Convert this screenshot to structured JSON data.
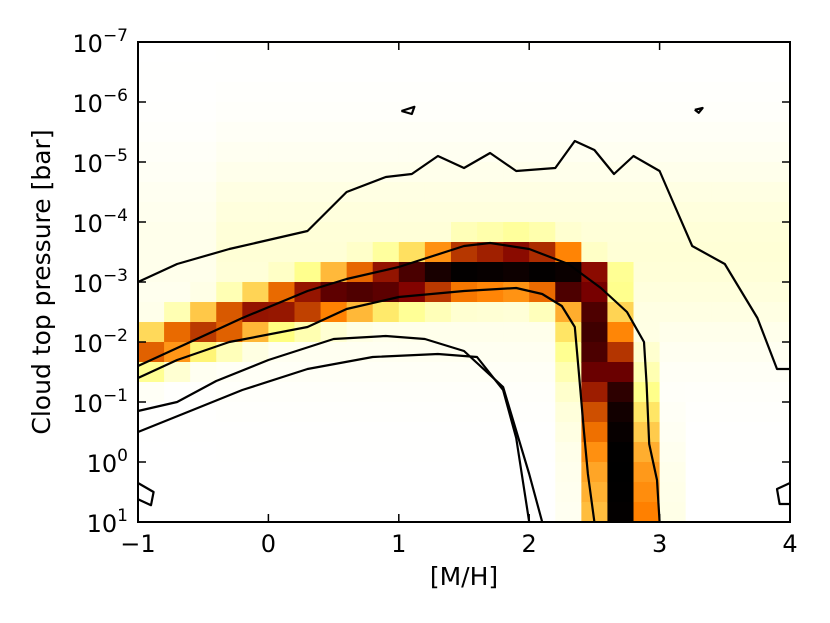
{
  "chart_data": {
    "type": "heatmap",
    "title": "",
    "xlabel": "[M/H]",
    "ylabel": "Cloud top pressure [bar]",
    "xlim": [
      -1,
      4
    ],
    "ylim_log10_pressure": [
      -7,
      1
    ],
    "y_axis_inverted": true,
    "colormap": "afmhot_r",
    "x_ticks": [
      {
        "value": -1,
        "label": "−1"
      },
      {
        "value": 0,
        "label": "0"
      },
      {
        "value": 1,
        "label": "1"
      },
      {
        "value": 2,
        "label": "2"
      },
      {
        "value": 3,
        "label": "3"
      },
      {
        "value": 4,
        "label": "4"
      }
    ],
    "y_ticks": [
      {
        "value": -7,
        "label": "10",
        "exp": "−7"
      },
      {
        "value": -6,
        "label": "10",
        "exp": "−6"
      },
      {
        "value": -5,
        "label": "10",
        "exp": "−5"
      },
      {
        "value": -4,
        "label": "10",
        "exp": "−4"
      },
      {
        "value": -3,
        "label": "10",
        "exp": "−3"
      },
      {
        "value": -2,
        "label": "10",
        "exp": "−2"
      },
      {
        "value": -1,
        "label": "10",
        "exp": "−1"
      },
      {
        "value": 0,
        "label": "10",
        "exp": "0"
      },
      {
        "value": 1,
        "label": "10",
        "exp": "1"
      }
    ],
    "density_model": {
      "description": "Posterior density: curved ridge rising from low [M/H] toward ~1e-3 bar then dropping vertically near [M/H]~2.6",
      "upper_branch": [
        [
          -1,
          -1.8
        ],
        [
          -0.5,
          -2.2
        ],
        [
          0,
          -2.55
        ],
        [
          0.5,
          -2.8
        ],
        [
          1,
          -3.0
        ],
        [
          1.5,
          -3.2
        ],
        [
          2,
          -3.25
        ],
        [
          2.3,
          -3.1
        ]
      ],
      "vertical_branch_x": [
        [
          -2.8,
          2.45
        ],
        [
          -2,
          2.55
        ],
        [
          -1,
          2.65
        ],
        [
          0,
          2.7
        ],
        [
          1,
          2.72
        ]
      ],
      "peak_value": 1.0
    },
    "contours": [
      {
        "level": "inner",
        "points": [
          [
            -1,
            -1.4
          ],
          [
            -0.7,
            -1.7
          ],
          [
            -0.3,
            -2.0
          ],
          [
            0.3,
            -2.25
          ],
          [
            0.6,
            -2.55
          ],
          [
            1.0,
            -2.75
          ],
          [
            1.5,
            -2.85
          ],
          [
            1.9,
            -2.9
          ],
          [
            2.1,
            -2.8
          ],
          [
            2.25,
            -2.6
          ],
          [
            2.35,
            -2.25
          ],
          [
            2.38,
            -1.5
          ],
          [
            2.42,
            -0.5
          ],
          [
            2.45,
            0.2
          ],
          [
            2.5,
            1.0
          ]
        ]
      },
      {
        "level": "inner",
        "points": [
          [
            -1,
            -1.6
          ],
          [
            -0.6,
            -2.0
          ],
          [
            -0.2,
            -2.4
          ],
          [
            0.3,
            -2.85
          ],
          [
            0.6,
            -3.05
          ],
          [
            1.0,
            -3.25
          ],
          [
            1.5,
            -3.6
          ],
          [
            1.7,
            -3.65
          ],
          [
            2.0,
            -3.55
          ],
          [
            2.3,
            -3.3
          ],
          [
            2.55,
            -2.9
          ],
          [
            2.75,
            -2.5
          ],
          [
            2.88,
            -2.0
          ],
          [
            2.9,
            -1.3
          ],
          [
            2.92,
            -0.3
          ],
          [
            2.98,
            0.3
          ],
          [
            3.0,
            1.0
          ]
        ]
      },
      {
        "level": "outer",
        "points": [
          [
            -1,
            -0.5
          ],
          [
            -0.6,
            -0.85
          ],
          [
            -0.2,
            -1.2
          ],
          [
            0.3,
            -1.55
          ],
          [
            0.8,
            -1.75
          ],
          [
            1.3,
            -1.8
          ],
          [
            1.6,
            -1.75
          ],
          [
            1.8,
            -1.2
          ],
          [
            1.9,
            -0.4
          ],
          [
            1.95,
            0.3
          ],
          [
            2.0,
            1.0
          ]
        ]
      },
      {
        "level": "outer",
        "points": [
          [
            -1,
            -3.0
          ],
          [
            -0.7,
            -3.3
          ],
          [
            -0.3,
            -3.55
          ],
          [
            0.3,
            -3.85
          ],
          [
            0.6,
            -4.5
          ],
          [
            0.9,
            -4.75
          ],
          [
            1.1,
            -4.8
          ],
          [
            1.3,
            -5.1
          ],
          [
            1.5,
            -4.9
          ],
          [
            1.7,
            -5.15
          ],
          [
            1.9,
            -4.85
          ],
          [
            2.2,
            -4.9
          ],
          [
            2.35,
            -5.35
          ],
          [
            2.5,
            -5.2
          ],
          [
            2.65,
            -4.8
          ],
          [
            2.8,
            -5.1
          ],
          [
            3.0,
            -4.85
          ],
          [
            3.1,
            -4.35
          ],
          [
            3.25,
            -3.6
          ],
          [
            3.5,
            -3.3
          ],
          [
            3.75,
            -2.4
          ],
          [
            3.9,
            -1.55
          ],
          [
            4.0,
            -1.55
          ]
        ]
      },
      {
        "level": "outer",
        "points": [
          [
            -1,
            -0.85
          ],
          [
            -0.7,
            -1.0
          ],
          [
            -0.4,
            -1.35
          ],
          [
            0.0,
            -1.7
          ],
          [
            0.5,
            -2.05
          ],
          [
            0.9,
            -2.1
          ],
          [
            1.2,
            -2.05
          ],
          [
            1.5,
            -1.85
          ],
          [
            1.8,
            -1.25
          ],
          [
            2.0,
            0.2
          ],
          [
            2.1,
            1.0
          ]
        ]
      },
      {
        "level": "island",
        "points": [
          [
            1.02,
            -5.85
          ],
          [
            1.1,
            -5.8
          ],
          [
            1.12,
            -5.92
          ],
          [
            1.02,
            -5.85
          ]
        ]
      },
      {
        "level": "island",
        "points": [
          [
            3.27,
            -5.87
          ],
          [
            3.3,
            -5.82
          ],
          [
            3.33,
            -5.9
          ],
          [
            3.27,
            -5.87
          ]
        ]
      },
      {
        "level": "island",
        "points": [
          [
            -1.0,
            0.35
          ],
          [
            -0.88,
            0.5
          ],
          [
            -0.9,
            0.72
          ],
          [
            -1.0,
            0.62
          ]
        ]
      },
      {
        "level": "island",
        "points": [
          [
            4.0,
            0.35
          ],
          [
            3.9,
            0.45
          ],
          [
            3.92,
            0.7
          ],
          [
            4.0,
            0.7
          ]
        ]
      }
    ]
  }
}
